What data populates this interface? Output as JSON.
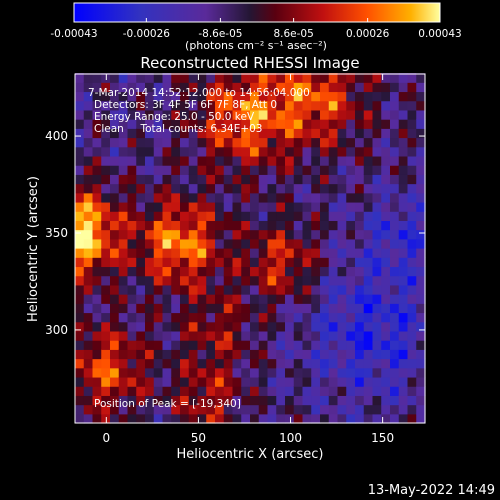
{
  "chart_data": {
    "type": "heatmap",
    "title": "Reconstructed RHESSI Image",
    "xlabel": "Heliocentric X (arcsec)",
    "ylabel": "Heliocentric Y (arcsec)",
    "xlim": [
      -17,
      173
    ],
    "ylim": [
      252,
      432
    ],
    "x_ticks": [
      0,
      50,
      100,
      150
    ],
    "x_tick_labels": [
      "0",
      "50",
      "100",
      "150"
    ],
    "y_ticks": [
      300,
      350,
      400
    ],
    "y_tick_labels": [
      "300",
      "350",
      "400"
    ],
    "colorbar": {
      "min": -0.00043,
      "max": 0.00043,
      "ticks": [
        -0.00043,
        -0.00026,
        -8.6e-05,
        8.6e-05,
        0.00026,
        0.00043
      ],
      "tick_labels": [
        "-0.00043",
        "-0.00026",
        "-8.6e-05",
        "8.6e-05",
        "0.00026",
        "0.00043"
      ],
      "unit_label": "(photons cm⁻² s⁻¹ asec⁻²)",
      "colormap": [
        "#0000ff",
        "#3030c8",
        "#5a2a9a",
        "#2a1a3a",
        "#6a0010",
        "#c01010",
        "#ff5000",
        "#ffb000",
        "#ffff90"
      ]
    },
    "annotations": [
      "7-Mar-2014 14:52:12.000 to 14:56:04.000",
      "Detectors: 3F 4F 5F 6F 7F 8F, Att 0",
      "Energy Range: 25.0 - 50.0 keV",
      "Clean     Total counts: 6.34E+03"
    ],
    "peak_text": "Position of Peak = [-19,340]",
    "peak_position": [
      -19,
      340
    ],
    "timestamp": "13-May-2022 14:49",
    "grid_step_arcsec": 4.75
  }
}
